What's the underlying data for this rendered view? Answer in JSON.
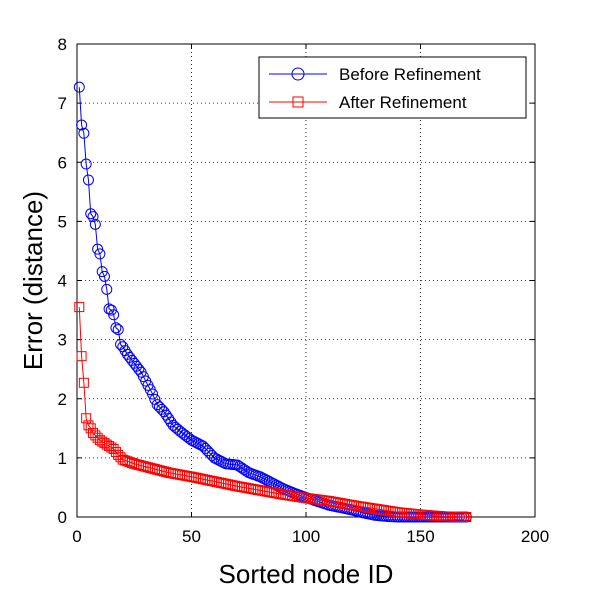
{
  "chart_data": {
    "type": "line",
    "xlabel": "Sorted node ID",
    "ylabel": "Error (distance)",
    "xlim": [
      0,
      200
    ],
    "ylim": [
      0,
      8
    ],
    "xticks": [
      0,
      50,
      100,
      150,
      200
    ],
    "yticks": [
      0,
      1,
      2,
      3,
      4,
      5,
      6,
      7,
      8
    ],
    "grid": true,
    "legend_position": "top-right",
    "n_points": 170,
    "series": [
      {
        "name": "Before Refinement",
        "color": "#0000ff",
        "marker": "circle",
        "anchors": [
          [
            1,
            7.27
          ],
          [
            2,
            6.63
          ],
          [
            3,
            6.49
          ],
          [
            4,
            5.97
          ],
          [
            5,
            5.7
          ],
          [
            6,
            5.13
          ],
          [
            7,
            5.08
          ],
          [
            8,
            4.95
          ],
          [
            9,
            4.53
          ],
          [
            10,
            4.45
          ],
          [
            11,
            4.15
          ],
          [
            12,
            4.07
          ],
          [
            13,
            3.85
          ],
          [
            14,
            3.52
          ],
          [
            15,
            3.5
          ],
          [
            16,
            3.42
          ],
          [
            17,
            3.2
          ],
          [
            18,
            3.17
          ],
          [
            19,
            2.92
          ],
          [
            20,
            2.88
          ],
          [
            22,
            2.75
          ],
          [
            25,
            2.6
          ],
          [
            28,
            2.45
          ],
          [
            30,
            2.3
          ],
          [
            33,
            2.08
          ],
          [
            35,
            1.9
          ],
          [
            38,
            1.78
          ],
          [
            42,
            1.55
          ],
          [
            45,
            1.45
          ],
          [
            50,
            1.3
          ],
          [
            55,
            1.2
          ],
          [
            60,
            1.0
          ],
          [
            65,
            0.9
          ],
          [
            70,
            0.88
          ],
          [
            75,
            0.75
          ],
          [
            80,
            0.68
          ],
          [
            85,
            0.58
          ],
          [
            90,
            0.48
          ],
          [
            95,
            0.4
          ],
          [
            100,
            0.33
          ],
          [
            110,
            0.2
          ],
          [
            120,
            0.12
          ],
          [
            125,
            0.07
          ],
          [
            130,
            0.03
          ],
          [
            135,
            0.01
          ],
          [
            140,
            0.0
          ],
          [
            170,
            0.0
          ]
        ]
      },
      {
        "name": "After Refinement",
        "color": "#ff0000",
        "marker": "square",
        "anchors": [
          [
            1,
            3.55
          ],
          [
            2,
            2.72
          ],
          [
            3,
            2.27
          ],
          [
            4,
            1.67
          ],
          [
            5,
            1.55
          ],
          [
            6,
            1.5
          ],
          [
            7,
            1.42
          ],
          [
            8,
            1.38
          ],
          [
            10,
            1.3
          ],
          [
            12,
            1.25
          ],
          [
            14,
            1.2
          ],
          [
            16,
            1.15
          ],
          [
            18,
            1.05
          ],
          [
            20,
            0.97
          ],
          [
            25,
            0.9
          ],
          [
            30,
            0.85
          ],
          [
            40,
            0.75
          ],
          [
            50,
            0.68
          ],
          [
            60,
            0.6
          ],
          [
            70,
            0.52
          ],
          [
            80,
            0.45
          ],
          [
            90,
            0.38
          ],
          [
            100,
            0.32
          ],
          [
            110,
            0.27
          ],
          [
            120,
            0.2
          ],
          [
            130,
            0.14
          ],
          [
            140,
            0.08
          ],
          [
            150,
            0.04
          ],
          [
            160,
            0.01
          ],
          [
            170,
            0.0
          ]
        ]
      }
    ]
  }
}
